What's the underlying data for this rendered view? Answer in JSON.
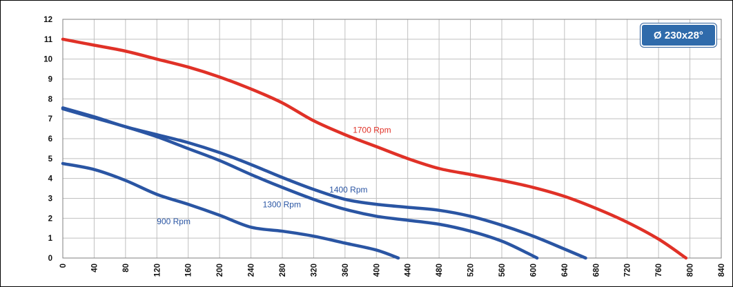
{
  "badge": {
    "text": "Ø 230x28°",
    "color": "#2f6bab"
  },
  "colors": {
    "grid": "#bfbfbf",
    "frame": "#000000",
    "red": "#e03127",
    "blue": "#2a55a3"
  },
  "chart_data": {
    "type": "line",
    "title": "",
    "xlabel": "",
    "ylabel": "",
    "xlim": [
      0,
      840
    ],
    "ylim": [
      0,
      12
    ],
    "grid": true,
    "x_ticks": [
      0,
      40,
      80,
      120,
      160,
      200,
      240,
      280,
      320,
      360,
      400,
      440,
      480,
      520,
      560,
      600,
      640,
      680,
      720,
      760,
      800,
      840
    ],
    "y_ticks": [
      0,
      1,
      2,
      3,
      4,
      5,
      6,
      7,
      8,
      9,
      10,
      11,
      12
    ],
    "series": [
      {
        "name": "1700 Rpm",
        "color": "#e03127",
        "points": [
          [
            0,
            11.0
          ],
          [
            40,
            10.7
          ],
          [
            80,
            10.4
          ],
          [
            120,
            10.0
          ],
          [
            160,
            9.6
          ],
          [
            200,
            9.1
          ],
          [
            240,
            8.5
          ],
          [
            280,
            7.8
          ],
          [
            320,
            6.9
          ],
          [
            360,
            6.2
          ],
          [
            400,
            5.6
          ],
          [
            440,
            5.0
          ],
          [
            480,
            4.5
          ],
          [
            520,
            4.2
          ],
          [
            560,
            3.9
          ],
          [
            600,
            3.55
          ],
          [
            640,
            3.1
          ],
          [
            680,
            2.5
          ],
          [
            720,
            1.8
          ],
          [
            760,
            0.95
          ],
          [
            795,
            0
          ]
        ],
        "label_at": [
          370,
          6.3
        ]
      },
      {
        "name": "1400 Rpm",
        "color": "#2a55a3",
        "points": [
          [
            0,
            7.55
          ],
          [
            40,
            7.1
          ],
          [
            80,
            6.6
          ],
          [
            120,
            6.2
          ],
          [
            160,
            5.8
          ],
          [
            200,
            5.3
          ],
          [
            240,
            4.7
          ],
          [
            280,
            4.05
          ],
          [
            320,
            3.45
          ],
          [
            360,
            2.95
          ],
          [
            400,
            2.7
          ],
          [
            440,
            2.55
          ],
          [
            480,
            2.4
          ],
          [
            520,
            2.1
          ],
          [
            560,
            1.65
          ],
          [
            600,
            1.1
          ],
          [
            640,
            0.45
          ],
          [
            667,
            0
          ]
        ],
        "label_at": [
          340,
          3.3
        ]
      },
      {
        "name": "1300 Rpm",
        "color": "#2a55a3",
        "points": [
          [
            0,
            7.5
          ],
          [
            40,
            7.05
          ],
          [
            80,
            6.6
          ],
          [
            120,
            6.1
          ],
          [
            160,
            5.5
          ],
          [
            200,
            4.9
          ],
          [
            240,
            4.2
          ],
          [
            280,
            3.55
          ],
          [
            320,
            2.95
          ],
          [
            360,
            2.45
          ],
          [
            400,
            2.1
          ],
          [
            440,
            1.9
          ],
          [
            480,
            1.7
          ],
          [
            520,
            1.35
          ],
          [
            560,
            0.85
          ],
          [
            590,
            0.3
          ],
          [
            605,
            0
          ]
        ],
        "label_at": [
          255,
          2.55
        ]
      },
      {
        "name": "900 Rpm",
        "color": "#2a55a3",
        "points": [
          [
            0,
            4.75
          ],
          [
            40,
            4.45
          ],
          [
            80,
            3.9
          ],
          [
            120,
            3.2
          ],
          [
            160,
            2.7
          ],
          [
            200,
            2.15
          ],
          [
            240,
            1.55
          ],
          [
            280,
            1.35
          ],
          [
            320,
            1.1
          ],
          [
            360,
            0.75
          ],
          [
            400,
            0.4
          ],
          [
            428,
            0
          ]
        ],
        "label_at": [
          120,
          1.7
        ]
      }
    ]
  }
}
